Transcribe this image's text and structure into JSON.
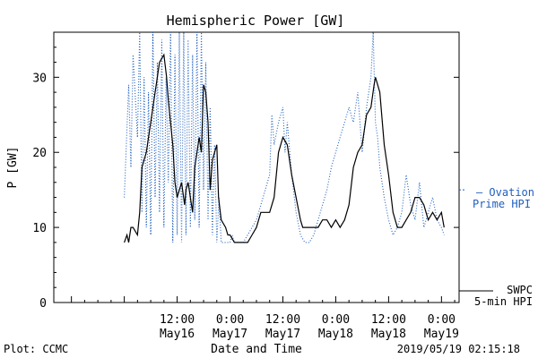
{
  "chart_data": {
    "type": "line",
    "title": "Hemispheric Power [GW]",
    "xlabel": "Date and Time",
    "ylabel": "P [GW]",
    "xlim": [
      -16,
      76
    ],
    "ylim": [
      0,
      36
    ],
    "grid": false,
    "legend": "right",
    "yticks": [
      0,
      10,
      20,
      30
    ],
    "xticks": [
      {
        "x": 12,
        "time": "12:00",
        "date": "May16"
      },
      {
        "x": 24,
        "time": "0:00",
        "date": "May17"
      },
      {
        "x": 36,
        "time": "12:00",
        "date": "May17"
      },
      {
        "x": 48,
        "time": "0:00",
        "date": "May18"
      },
      {
        "x": 60,
        "time": "12:00",
        "date": "May18"
      },
      {
        "x": 72,
        "time": "0:00",
        "date": "May19"
      }
    ],
    "series": [
      {
        "name": "SWPC 5-min HPI",
        "legend_lines": [
          "SWPC",
          "5-min HPI"
        ],
        "color": "#000000",
        "style": "solid",
        "x": [
          0.0,
          0.6,
          1.0,
          1.5,
          2.0,
          3.0,
          3.5,
          4.0,
          5.0,
          6.0,
          7.0,
          8.0,
          9.0,
          9.6,
          10.0,
          11.0,
          11.5,
          12.0,
          13.0,
          13.7,
          14.0,
          14.5,
          15.0,
          15.5,
          16.0,
          16.5,
          17.0,
          17.5,
          18.0,
          18.5,
          19.0,
          19.5,
          20.0,
          21.0,
          21.4,
          22.0,
          23.0,
          23.5,
          24.0,
          25.0,
          26.0,
          27.0,
          28.0,
          29.0,
          30.0,
          31.0,
          32.0,
          33.0,
          34.0,
          35.0,
          36.0,
          37.0,
          38.0,
          39.0,
          40.0,
          40.5,
          41.0,
          42.0,
          43.0,
          44.0,
          45.0,
          46.0,
          47.0,
          48.0,
          49.0,
          50.0,
          51.0,
          52.0,
          53.0,
          54.0,
          55.0,
          56.0,
          56.7,
          57.0,
          58.0,
          59.0,
          60.0,
          61.0,
          62.0,
          63.0,
          64.0,
          65.0,
          66.0,
          67.0,
          68.0,
          69.0,
          70.0,
          71.0,
          72.0,
          72.6
        ],
        "values": [
          8,
          9,
          8,
          10,
          10,
          9,
          12,
          18,
          20,
          24,
          28,
          32,
          33,
          30,
          27,
          21,
          16,
          14,
          16,
          13,
          15,
          16,
          14,
          12,
          18,
          20,
          22,
          20,
          29,
          28,
          24,
          15,
          19,
          21,
          14,
          11,
          10,
          9,
          9,
          8,
          8,
          8,
          8,
          9,
          10,
          12,
          12,
          12,
          14,
          20,
          22,
          21,
          17,
          14,
          11,
          10,
          10,
          10,
          10,
          10,
          11,
          11,
          10,
          11,
          10,
          11,
          13,
          18,
          20,
          21,
          25,
          26,
          29,
          30,
          28,
          21,
          17,
          12,
          10,
          10,
          11,
          12,
          14,
          14,
          13,
          11,
          12,
          11,
          12,
          10
        ]
      },
      {
        "name": "Ovation Prime HPI",
        "legend_lines": [
          "Ovation",
          "Prime HPI"
        ],
        "color": "#1f5fbf",
        "style": "dotted",
        "x": [
          0.0,
          1.0,
          1.5,
          2.0,
          3.0,
          3.5,
          4.0,
          4.5,
          5.0,
          5.5,
          6.0,
          6.5,
          7.0,
          7.5,
          8.0,
          8.5,
          9.0,
          9.5,
          10.0,
          10.5,
          11.0,
          11.5,
          12.0,
          12.5,
          13.0,
          13.5,
          14.0,
          14.5,
          15.0,
          15.5,
          16.0,
          16.5,
          17.0,
          17.5,
          18.0,
          18.5,
          19.0,
          19.5,
          20.0,
          20.5,
          21.0,
          21.5,
          22.0,
          23.0,
          24.0,
          24.5,
          25.0,
          26.0,
          27.0,
          28.0,
          29.0,
          30.0,
          31.0,
          32.0,
          33.0,
          33.5,
          34.0,
          35.0,
          36.0,
          36.5,
          37.0,
          38.0,
          39.0,
          40.0,
          41.0,
          42.0,
          43.0,
          44.0,
          45.0,
          46.0,
          47.0,
          48.0,
          49.0,
          50.0,
          51.0,
          52.0,
          53.0,
          54.0,
          55.0,
          56.0,
          56.5,
          57.0,
          57.5,
          58.0,
          59.0,
          60.0,
          61.0,
          62.0,
          63.0,
          64.0,
          65.0,
          66.0,
          67.0,
          68.0,
          69.0,
          70.0,
          71.0,
          72.0,
          72.6
        ],
        "values": [
          14,
          29,
          18,
          33,
          22,
          36,
          12,
          30,
          10,
          28,
          9,
          36,
          14,
          32,
          12,
          35,
          10,
          30,
          16,
          36,
          8,
          33,
          9,
          36,
          8,
          36,
          9,
          35,
          10,
          33,
          11,
          36,
          10,
          36,
          15,
          32,
          11,
          26,
          9,
          21,
          8,
          14,
          8,
          8,
          8,
          9,
          8,
          8,
          8,
          9,
          10,
          11,
          13,
          15,
          17,
          25,
          21,
          24,
          26,
          20,
          24,
          17,
          12,
          9,
          8,
          8,
          9,
          11,
          13,
          15,
          18,
          20,
          22,
          24,
          26,
          24,
          28,
          20,
          26,
          30,
          36,
          24,
          22,
          18,
          14,
          11,
          9,
          10,
          12,
          17,
          13,
          11,
          16,
          10,
          12,
          14,
          11,
          10,
          9
        ]
      }
    ]
  },
  "footer": {
    "left": "Plot: CCMC",
    "right": "2019/05/19 02:15:18"
  }
}
